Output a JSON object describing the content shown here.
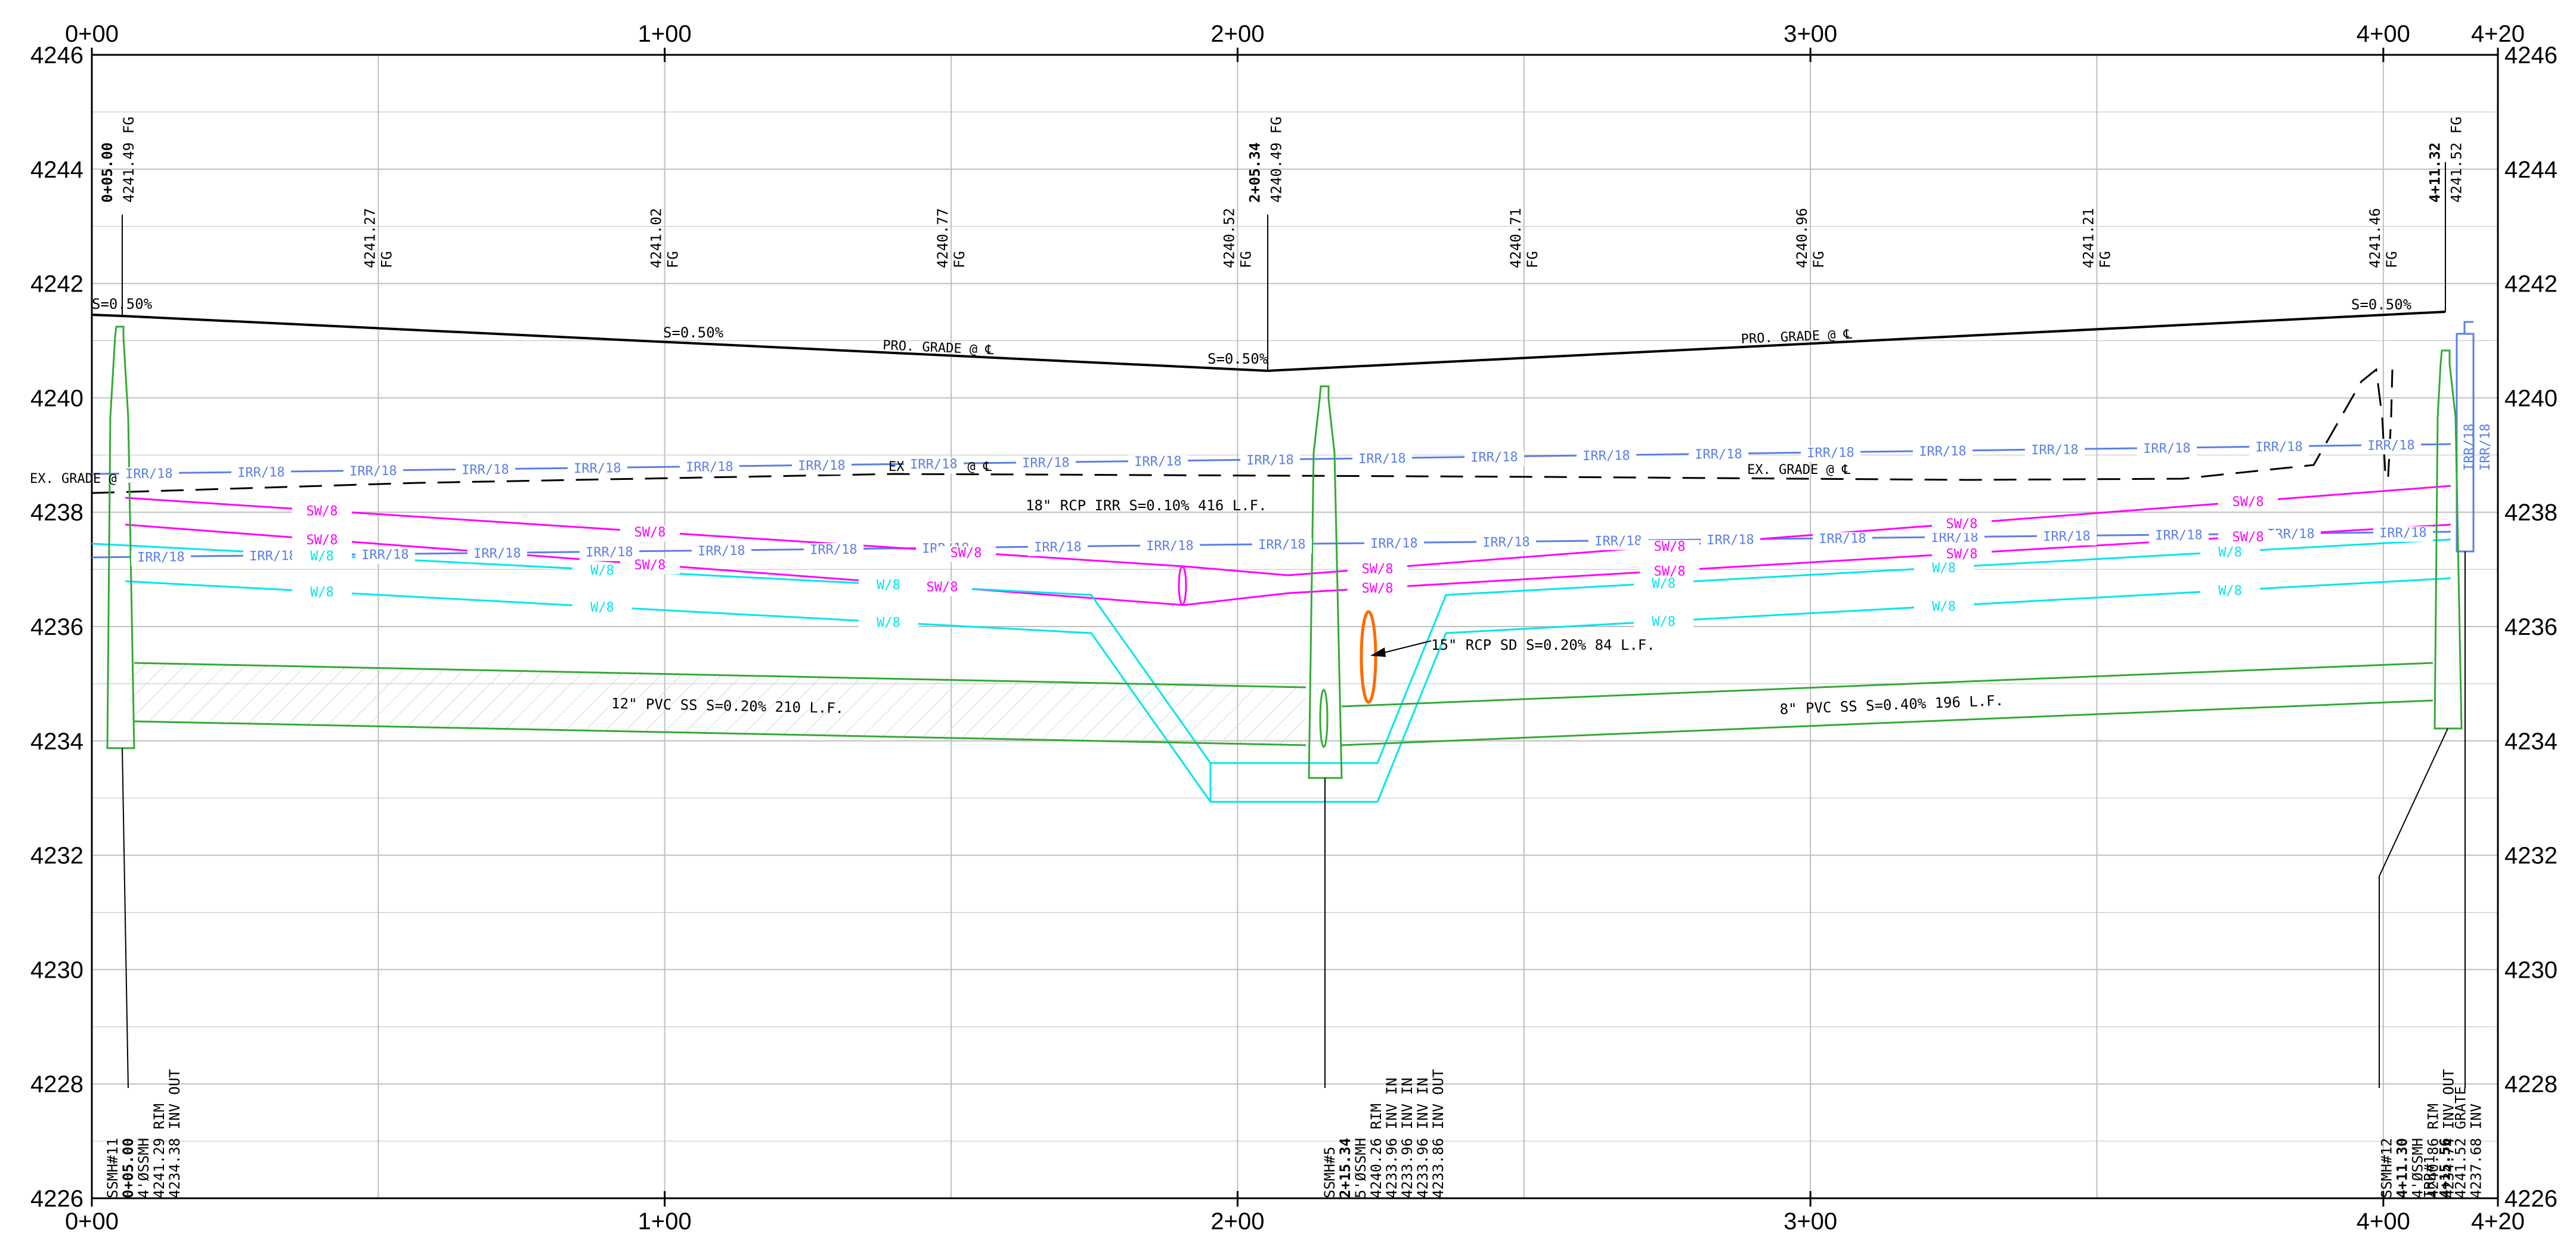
{
  "drawing": {
    "stations": [
      "0+00",
      "1+00",
      "2+00",
      "3+00",
      "4+00",
      "4+20"
    ],
    "station_values": [
      0,
      100,
      200,
      300,
      400,
      420
    ],
    "elevations": [
      "4246",
      "4244",
      "4242",
      "4240",
      "4238",
      "4236",
      "4234",
      "4232",
      "4230",
      "4228",
      "4226"
    ],
    "elevation_values": [
      4246,
      4244,
      4242,
      4240,
      4238,
      4236,
      4234,
      4232,
      4230,
      4228,
      4226
    ],
    "colors": {
      "proposed_grade": "#000000",
      "existing_grade": "#000000",
      "irrigation": "#5b7fe6",
      "storm_water": "#ff00ff",
      "water": "#00e5ee",
      "sewer": "#33aa33",
      "storm_drain_pipe": "#ff6a00",
      "grid": "#bfbfbf"
    },
    "fg_labels": [
      {
        "sta": 5.0,
        "sta_label": "0+05.00",
        "elev": "4241.49",
        "suffix": "FG",
        "bold": true
      },
      {
        "sta": 50,
        "elev": "4241.27",
        "suffix": "FG"
      },
      {
        "sta": 100,
        "elev": "4241.02",
        "suffix": "FG"
      },
      {
        "sta": 150,
        "elev": "4240.77",
        "suffix": "FG"
      },
      {
        "sta": 200,
        "elev": "4240.52",
        "suffix": "FG"
      },
      {
        "sta": 205.34,
        "sta_label": "2+05.34",
        "elev": "4240.49",
        "suffix": "FG",
        "bold": true
      },
      {
        "sta": 250,
        "elev": "4240.71",
        "suffix": "FG"
      },
      {
        "sta": 300,
        "elev": "4240.96",
        "suffix": "FG"
      },
      {
        "sta": 350,
        "elev": "4241.21",
        "suffix": "FG"
      },
      {
        "sta": 400,
        "elev": "4241.46",
        "suffix": "FG"
      },
      {
        "sta": 411.32,
        "sta_label": "4+11.32",
        "elev": "4241.52",
        "suffix": "FG",
        "bold": true
      }
    ],
    "grade_labels": {
      "slope": "S=0.50%",
      "pro_grade": "PRO. GRADE @",
      "ex_grade": "EX. GRADE @",
      "cl": "℄"
    },
    "utility_tags": {
      "irrigation": "IRR/18",
      "storm_water": "SW/8",
      "water": "W/8"
    },
    "pipe_callouts": {
      "irr_rcp": "18\" RCP IRR S=0.10% 416 L.F.",
      "rcp_sd": "15\" RCP SD S=0.20% 84 L.F.",
      "pvc_12": "12\" PVC SS S=0.20% 210 L.F.",
      "pvc_8": "8\" PVC SS S=0.40% 196 L.F."
    },
    "structures": [
      {
        "sta": 5.0,
        "lines": [
          "SSMH#11",
          "0+05.00",
          "4'ØSSMH",
          "4241.29 RIM",
          "4234.38 INV OUT"
        ],
        "bold_index": 1
      },
      {
        "sta": 215.34,
        "lines": [
          "SSMH#5",
          "2+15.34",
          "5'ØSSMH",
          "4240.26 RIM",
          "4233.96 INV IN",
          "4233.96 INV IN",
          "4233.96 INV IN",
          "4233.86 INV OUT"
        ],
        "bold_index": 1
      },
      {
        "sta": 411.3,
        "lines": [
          "SSMH#12",
          "4+11.30",
          "4'ØSSMH",
          "4240.86 RIM",
          "4234.74 INV OUT"
        ],
        "bold_index": 1
      },
      {
        "sta": 415.56,
        "lines": [
          "IRR#1",
          "4+15.56",
          "4241.52 GRATE",
          "4237.68 INV"
        ],
        "bold_index": 1
      }
    ]
  }
}
